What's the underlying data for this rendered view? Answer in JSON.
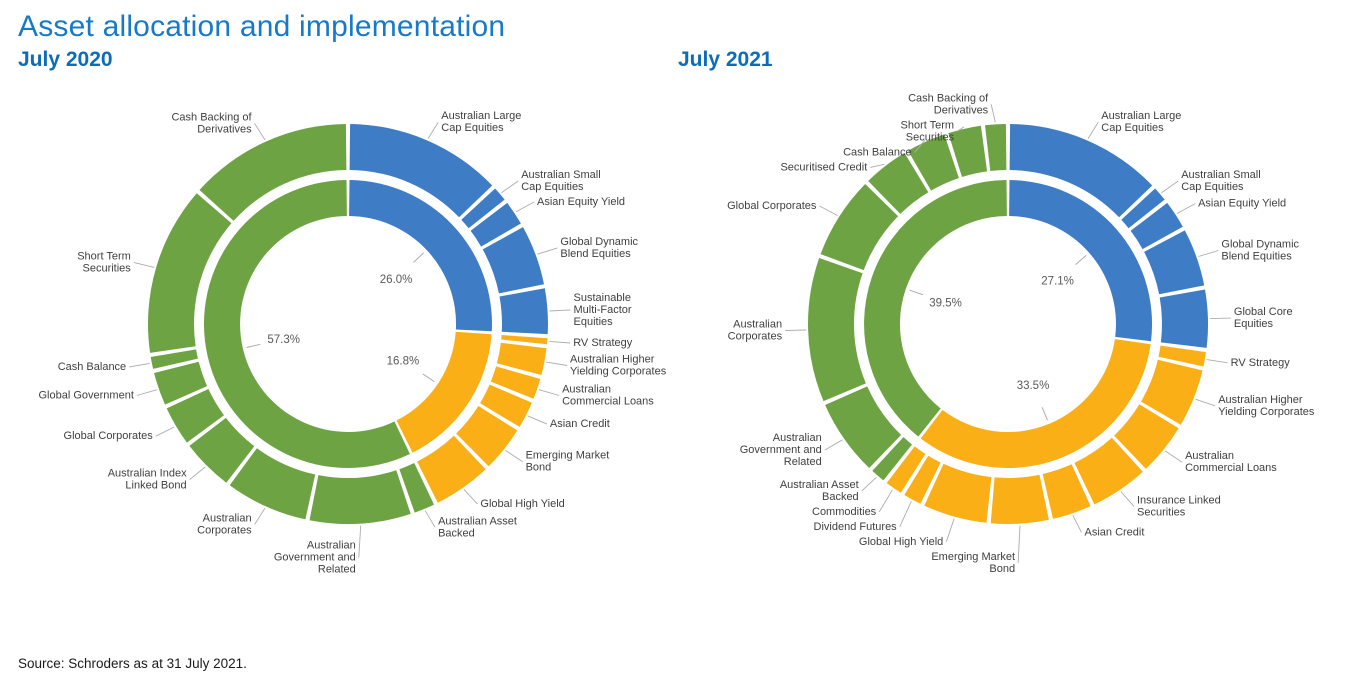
{
  "page": {
    "title": "Asset allocation and implementation",
    "source": "Source: Schroders as at 31 July 2021."
  },
  "colors": {
    "title_blue": "#1879C6",
    "subtitle_blue": "#0D6CB8",
    "equities_blue": "#3E7CC6",
    "yield_yellow": "#FBAF17",
    "fixed_income_green": "#6DA343",
    "label_gray": "#404040",
    "leader_gray": "#ACACAC"
  },
  "chart_data": [
    {
      "type": "pie",
      "variant": "double-ring donut",
      "title": "July 2020",
      "unit": "percent",
      "legend_position": "none",
      "groups": [
        {
          "color": "#3E7CC6",
          "pct": 26.0,
          "pct_label": "26.0%",
          "segments": [
            {
              "label": "Australian Large Cap Equities",
              "value": 13.0
            },
            {
              "label": "Australian Small Cap Equities",
              "value": 1.5
            },
            {
              "label": "Asian Equity Yield",
              "value": 2.3
            },
            {
              "label": "Global Dynamic Blend Equities",
              "value": 5.2
            },
            {
              "label": "Sustainable Multi-Factor Equities",
              "value": 4.0
            }
          ]
        },
        {
          "color": "#FBAF17",
          "pct": 16.8,
          "pct_label": "16.8%",
          "segments": [
            {
              "label": "RV Strategy",
              "value": 0.8
            },
            {
              "label": "Australian Higher Yielding Corporates",
              "value": 2.5
            },
            {
              "label": "Australian Commercial Loans",
              "value": 2.0
            },
            {
              "label": "Asian Credit",
              "value": 2.5
            },
            {
              "label": "Emerging Market Bond",
              "value": 4.0
            },
            {
              "label": "Global High Yield",
              "value": 5.0
            }
          ]
        },
        {
          "color": "#6DA343",
          "pct": 57.3,
          "pct_label": "57.3%",
          "segments": [
            {
              "label": "Australian Asset Backed",
              "value": 2.0
            },
            {
              "label": "Australian Government and Related",
              "value": 8.5
            },
            {
              "label": "Australian Corporates",
              "value": 7.0
            },
            {
              "label": "Australian Index Linked Bond",
              "value": 4.5
            },
            {
              "label": "Global Corporates",
              "value": 3.5
            },
            {
              "label": "Global Government",
              "value": 3.0
            },
            {
              "label": "Cash Balance",
              "value": 1.3
            },
            {
              "label": "Short Term Securities",
              "value": 14.0
            },
            {
              "label": "Cash Backing of Derivatives",
              "value": 13.5
            }
          ]
        }
      ]
    },
    {
      "type": "pie",
      "variant": "double-ring donut",
      "title": "July 2021",
      "unit": "percent",
      "legend_position": "none",
      "groups": [
        {
          "color": "#3E7CC6",
          "pct": 27.1,
          "pct_label": "27.1%",
          "segments": [
            {
              "label": "Australian Large Cap Equities",
              "value": 13.0
            },
            {
              "label": "Australian Small Cap Equities",
              "value": 1.5
            },
            {
              "label": "Asian Equity Yield",
              "value": 2.6
            },
            {
              "label": "Global Dynamic Blend Equities",
              "value": 5.0
            },
            {
              "label": "Global Core Equities",
              "value": 5.0
            }
          ]
        },
        {
          "color": "#FBAF17",
          "pct": 33.5,
          "pct_label": "33.5%",
          "segments": [
            {
              "label": "RV Strategy",
              "value": 1.5
            },
            {
              "label": "Australian Higher Yielding Corporates",
              "value": 5.0
            },
            {
              "label": "Australian Commercial Loans",
              "value": 4.5
            },
            {
              "label": "Insurance Linked Securities",
              "value": 5.0
            },
            {
              "label": "Asian Credit",
              "value": 3.5
            },
            {
              "label": "Emerging Market Bond",
              "value": 5.0
            },
            {
              "label": "Global High Yield",
              "value": 5.5
            },
            {
              "label": "Dividend Futures",
              "value": 1.8
            },
            {
              "label": "Commodities",
              "value": 1.7
            }
          ]
        },
        {
          "color": "#6DA343",
          "pct": 39.5,
          "pct_label": "39.5%",
          "segments": [
            {
              "label": "Australian Asset Backed",
              "value": 1.5
            },
            {
              "label": "Australian Government and Related",
              "value": 6.5
            },
            {
              "label": "Australian Corporates",
              "value": 12.0
            },
            {
              "label": "Global Corporates",
              "value": 7.0
            },
            {
              "label": "Securitised Credit",
              "value": 4.0
            },
            {
              "label": "Cash Balance",
              "value": 3.5
            },
            {
              "label": "Short Term Securities",
              "value": 3.0
            },
            {
              "label": "Cash Backing of Derivatives",
              "value": 2.0
            }
          ]
        }
      ]
    }
  ]
}
